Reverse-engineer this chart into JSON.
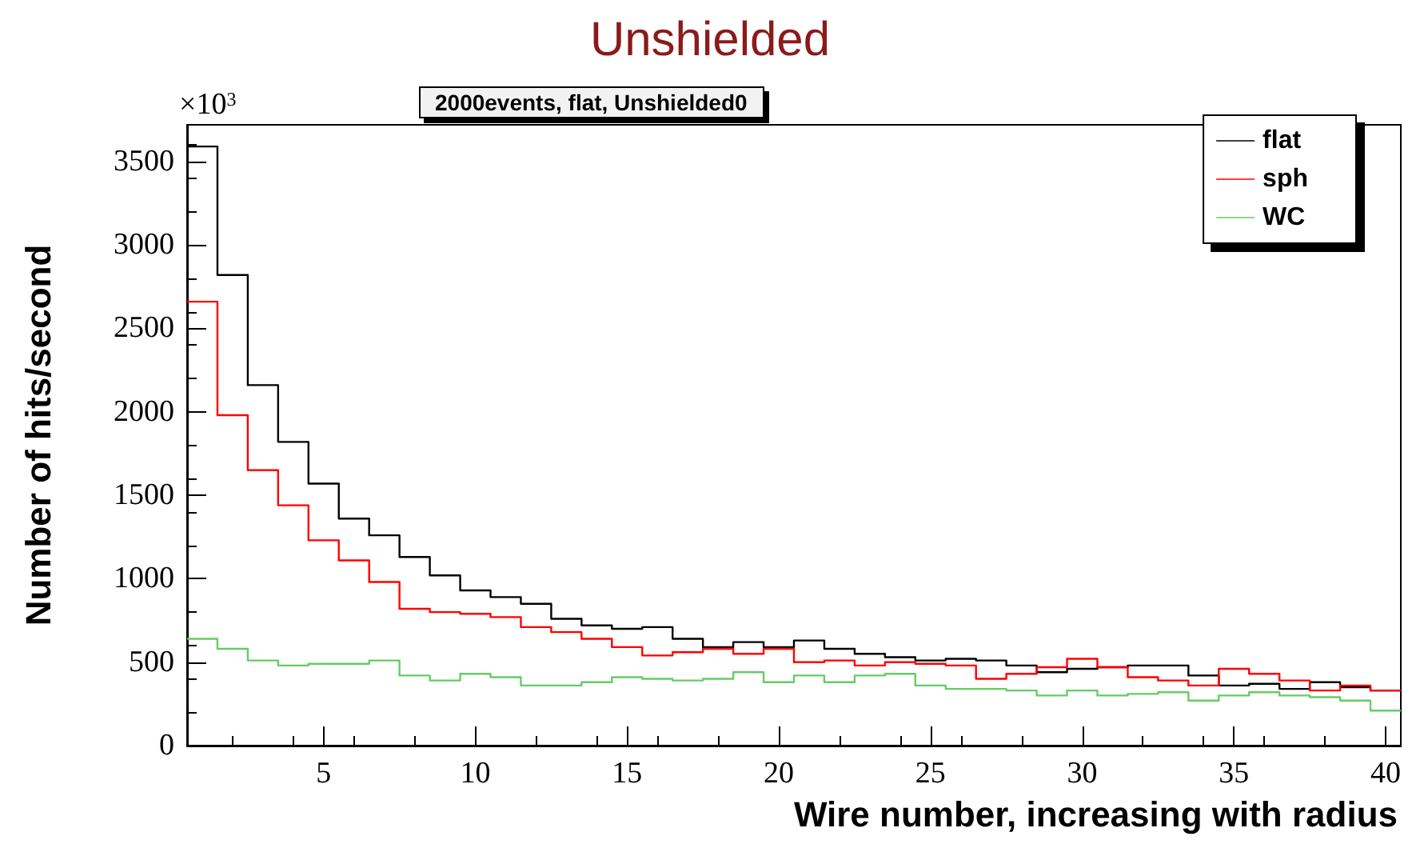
{
  "chart_data": {
    "type": "histogram",
    "title": "Unshielded",
    "subtitle": "2000events, flat, Unshielded0",
    "xlabel": "Wire number, increasing with radius",
    "ylabel": "Number of hits/second",
    "annotations": [
      "×10$^{3}$"
    ],
    "bins": [
      0.5,
      1.5,
      2.5,
      3.5,
      4.5,
      5.5,
      6.5,
      7.5,
      8.5,
      9.5,
      10.5,
      11.5,
      12.5,
      13.5,
      14.5,
      15.5,
      16.5,
      17.5,
      18.5,
      19.5,
      20.5,
      21.5,
      22.5,
      23.5,
      24.5,
      25.5,
      26.5,
      27.5,
      28.5,
      29.5,
      30.5,
      31.5,
      32.5,
      33.5,
      34.5,
      35.5,
      36.5,
      37.5,
      38.5,
      39.5,
      40.5
    ],
    "series": [
      {
        "name": "flat",
        "color": "#000000",
        "values": [
          3590,
          2820,
          2160,
          1820,
          1570,
          1360,
          1260,
          1130,
          1020,
          930,
          890,
          850,
          760,
          720,
          700,
          710,
          640,
          590,
          620,
          590,
          630,
          580,
          550,
          530,
          510,
          520,
          510,
          480,
          440,
          460,
          470,
          480,
          480,
          420,
          360,
          370,
          340,
          380,
          350,
          330
        ]
      },
      {
        "name": "sph",
        "color": "#ff0000",
        "values": [
          2660,
          1980,
          1650,
          1440,
          1230,
          1110,
          980,
          820,
          800,
          790,
          770,
          710,
          680,
          640,
          590,
          540,
          560,
          580,
          550,
          580,
          500,
          510,
          480,
          500,
          490,
          480,
          400,
          430,
          470,
          520,
          470,
          410,
          390,
          360,
          460,
          430,
          390,
          330,
          360,
          330
        ]
      },
      {
        "name": "WC",
        "color": "#66cc66",
        "values": [
          640,
          580,
          510,
          480,
          490,
          490,
          510,
          420,
          390,
          430,
          410,
          360,
          360,
          380,
          410,
          400,
          390,
          400,
          440,
          380,
          420,
          380,
          420,
          430,
          360,
          340,
          340,
          330,
          300,
          330,
          300,
          310,
          320,
          270,
          300,
          320,
          300,
          290,
          270,
          210
        ]
      }
    ],
    "xlim": [
      0.5,
      40.5
    ],
    "xticks": [
      5,
      10,
      15,
      20,
      25,
      30,
      35,
      40
    ],
    "ylim": [
      0,
      3720
    ],
    "yticks": [
      0,
      500,
      1000,
      1500,
      2000,
      2500,
      3000,
      3500
    ],
    "grid": false,
    "legend": "top right",
    "marker": "none",
    "line_style": "solid"
  }
}
